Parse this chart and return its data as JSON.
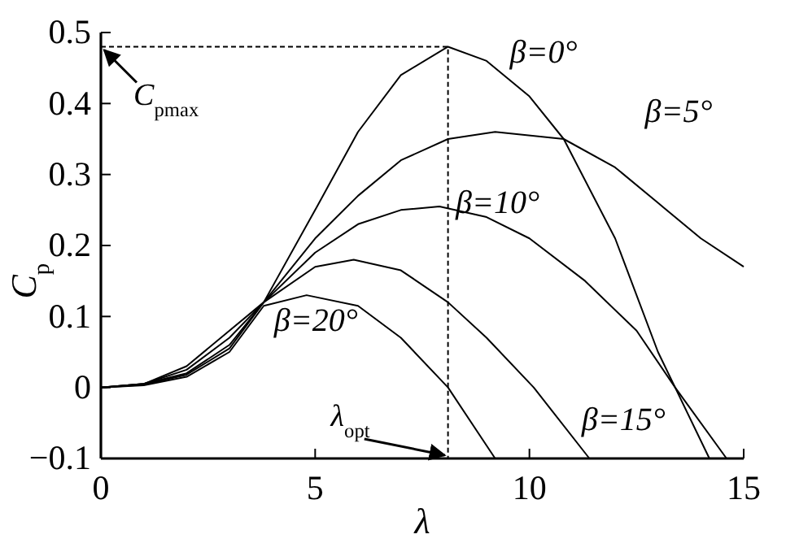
{
  "chart_data": {
    "type": "line",
    "xlabel": "λ",
    "ylabel": "C$_{p}$",
    "xlim": [
      0,
      15
    ],
    "xticks": [
      0,
      5,
      10,
      15
    ],
    "ylim": [
      -0.1,
      0.5
    ],
    "yticks": [
      {
        "value": -0.1,
        "label": "−0.1"
      },
      0,
      0.1,
      0.2,
      0.3,
      0.4,
      0.5
    ],
    "grid": false,
    "marker": "none",
    "line_style": "solid",
    "series": [
      {
        "name": "β=0°",
        "color": "#000000",
        "x": [
          0,
          1,
          2,
          3,
          3.8,
          5,
          6,
          7,
          8.1,
          9,
          10,
          10.8,
          12,
          13,
          13.4,
          14.2
        ],
        "values": [
          0,
          0.005,
          0.03,
          0.08,
          0.12,
          0.25,
          0.36,
          0.44,
          0.48,
          0.46,
          0.41,
          0.35,
          0.21,
          0.05,
          0,
          -0.1
        ]
      },
      {
        "name": "β=5°",
        "color": "#000000",
        "x": [
          0,
          1,
          2,
          3,
          3.8,
          5,
          6,
          7,
          8.1,
          9.2,
          10.8,
          12,
          13,
          14,
          15
        ],
        "values": [
          0,
          0.005,
          0.025,
          0.07,
          0.12,
          0.21,
          0.27,
          0.32,
          0.35,
          0.36,
          0.35,
          0.31,
          0.26,
          0.21,
          0.17
        ]
      },
      {
        "name": "β=10°",
        "color": "#000000",
        "x": [
          0,
          1,
          2,
          3,
          3.8,
          5,
          6,
          7,
          7.9,
          9,
          10,
          11.3,
          12.5,
          13.4,
          14.6
        ],
        "values": [
          0,
          0.005,
          0.02,
          0.06,
          0.12,
          0.19,
          0.23,
          0.25,
          0.255,
          0.24,
          0.21,
          0.15,
          0.08,
          0,
          -0.1
        ]
      },
      {
        "name": "β=15°",
        "color": "#000000",
        "x": [
          0,
          1,
          2,
          3,
          3.8,
          5,
          5.9,
          7,
          8.1,
          9,
          10.1,
          11.4
        ],
        "values": [
          0,
          0.004,
          0.018,
          0.055,
          0.12,
          0.17,
          0.18,
          0.165,
          0.12,
          0.07,
          0,
          -0.1
        ]
      },
      {
        "name": "β=20°",
        "color": "#000000",
        "x": [
          0,
          1,
          2,
          3,
          3.8,
          4.8,
          6,
          7,
          8.1,
          9.2
        ],
        "values": [
          0,
          0.003,
          0.015,
          0.05,
          0.115,
          0.13,
          0.115,
          0.07,
          0,
          -0.1
        ]
      },
      {
        "color": "#000000",
        "line_style": "dashed",
        "x": [
          0,
          8.1,
          8.1
        ],
        "values": [
          0.48,
          0.48,
          -0.1
        ]
      }
    ],
    "annotations": [
      {
        "text": "C$_{pmax}$",
        "x": 0,
        "y": 0.48
      },
      {
        "text": "λ$_{opt}$",
        "x": 8.1,
        "y": -0.1
      }
    ]
  }
}
